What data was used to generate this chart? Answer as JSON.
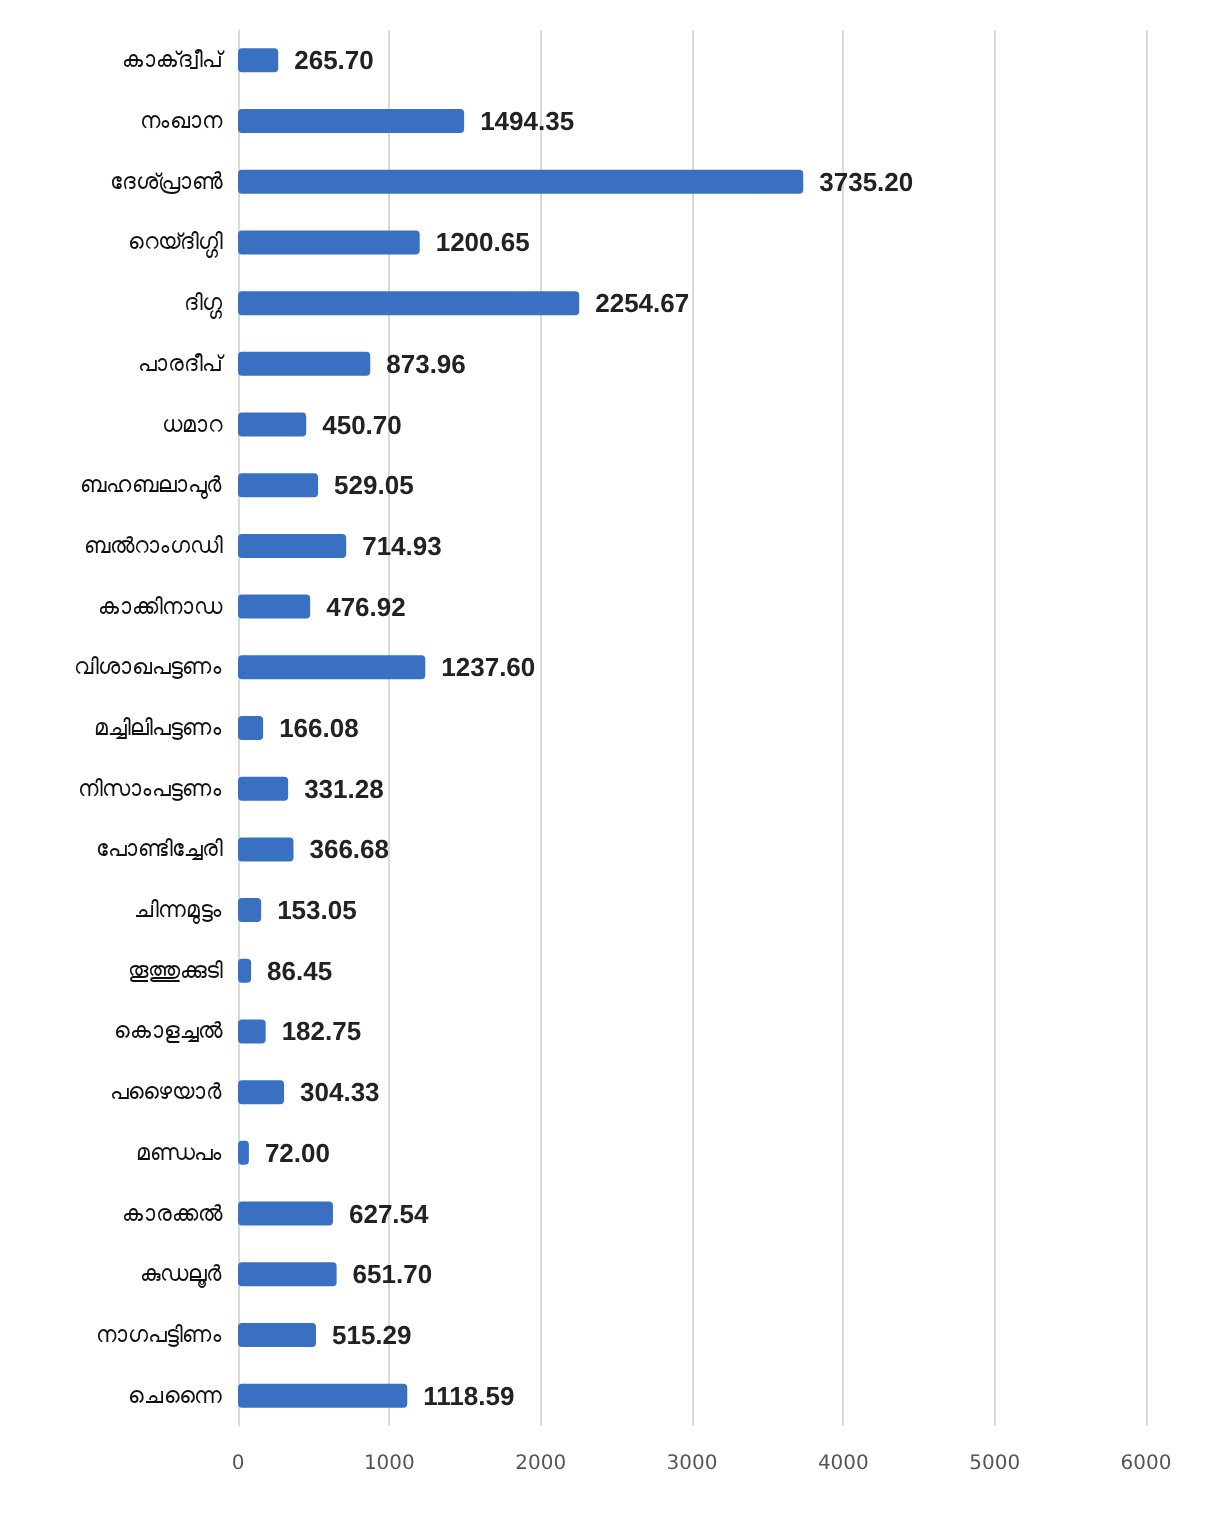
{
  "chart_data": {
    "type": "bar",
    "orientation": "horizontal",
    "categories": [
      "കാക്ദ്വീപ്",
      "നംഖാന",
      "ദേശ്പ്രാൺ",
      "റെയ്ദിഗ്ഗി",
      "ദിഗ്ഗ",
      "പാരദീപ്",
      "ധമാറ",
      "ബഹബലാപുർ",
      "ബൽറാംഗഡി",
      "കാക്കിനാഡ",
      "വിശാഖപട്ടണം",
      "മച്ചിലിപട്ടണം",
      "നിസാംപട്ടണം",
      "പോണ്ടിച്ചേരി",
      "ചിന്നമുട്ടം",
      "തൂത്തുക്കുടി",
      "കൊളച്ചൽ",
      "പഴൈയാർ",
      "മണ്ഡപം",
      "കാരക്കൽ",
      "കുഡലൂർ",
      "നാഗപട്ടിണം",
      "ചെന്നൈ"
    ],
    "values": [
      265.7,
      1494.35,
      3735.2,
      1200.65,
      2254.67,
      873.96,
      450.7,
      529.05,
      714.93,
      476.92,
      1237.6,
      166.08,
      331.28,
      366.68,
      153.05,
      86.45,
      182.75,
      304.33,
      72.0,
      627.54,
      651.7,
      515.29,
      1118.59
    ],
    "value_labels": [
      "265.70",
      "1494.35",
      "3735.20",
      "1200.65",
      "2254.67",
      "873.96",
      "450.70",
      "529.05",
      "714.93",
      "476.92",
      "1237.60",
      "166.08",
      "331.28",
      "366.68",
      "153.05",
      "86.45",
      "182.75",
      "304.33",
      "72.00",
      "627.54",
      "651.70",
      "515.29",
      "1118.59"
    ],
    "color": "#3a70c2",
    "xlim": [
      0,
      6000
    ],
    "xticks": [
      0,
      1000,
      2000,
      3000,
      4000,
      5000,
      6000
    ],
    "grid": "x"
  }
}
